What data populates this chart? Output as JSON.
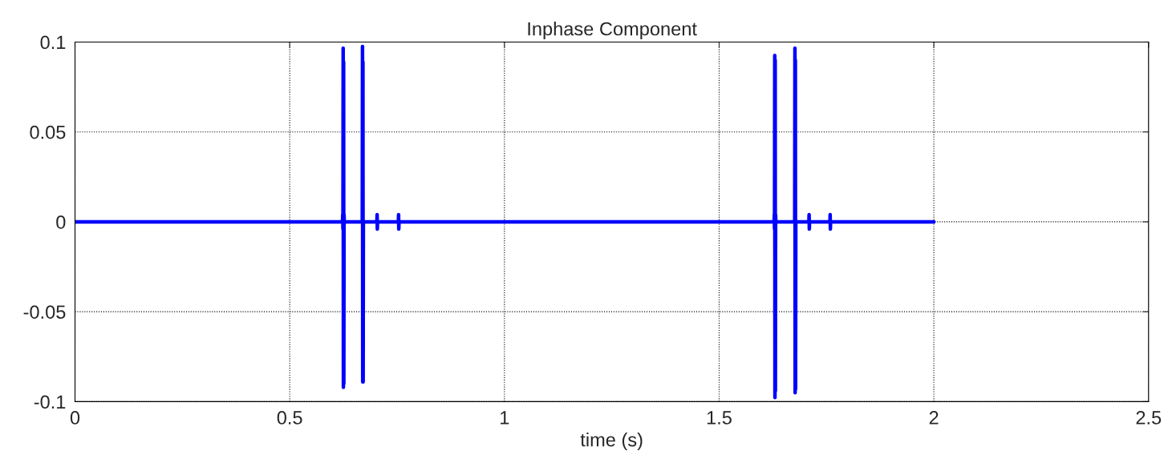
{
  "chart_data": {
    "type": "line",
    "title": "Inphase Component",
    "xlabel": "time (s)",
    "x": [
      0,
      0.623,
      0.6235,
      0.624,
      0.6245,
      0.625,
      0.6255,
      0.626,
      0.6265,
      0.627,
      0.669,
      0.6695,
      0.67,
      0.6705,
      0.671,
      0.6715,
      0.703,
      0.7035,
      0.704,
      0.7045,
      0.753,
      0.7535,
      0.754,
      0.7545,
      1.628,
      1.6285,
      1.629,
      1.6295,
      1.63,
      1.6305,
      1.631,
      1.6315,
      1.632,
      1.676,
      1.6765,
      1.677,
      1.6775,
      1.678,
      1.6785,
      1.709,
      1.7095,
      1.71,
      1.7105,
      1.758,
      1.7585,
      1.759,
      1.7595,
      2
    ],
    "series": [
      {
        "color": "#0000ff",
        "values": [
          0,
          0,
          0.004,
          -0.004,
          0.0966,
          -0.092,
          0.089,
          -0.09,
          0.004,
          0,
          0,
          0.0975,
          -0.089,
          0.089,
          -0.089,
          0,
          0,
          0.004,
          -0.004,
          0,
          0,
          0.004,
          -0.004,
          0,
          0,
          0.004,
          -0.004,
          0.0925,
          -0.0977,
          0.09,
          -0.094,
          0.004,
          0,
          0,
          0.0966,
          -0.095,
          0.09,
          -0.093,
          0,
          0,
          0.004,
          -0.004,
          0,
          0,
          0.004,
          -0.004,
          0,
          0
        ]
      }
    ],
    "xlim": [
      0,
      2.5
    ],
    "xticks": [
      0,
      0.5,
      1,
      1.5,
      2,
      2.5
    ],
    "ylim": [
      -0.1,
      0.1
    ],
    "yticks": [
      -0.1,
      -0.05,
      0,
      0.05,
      0.1
    ],
    "grid": true,
    "line_style": "solid",
    "marker": "none"
  }
}
